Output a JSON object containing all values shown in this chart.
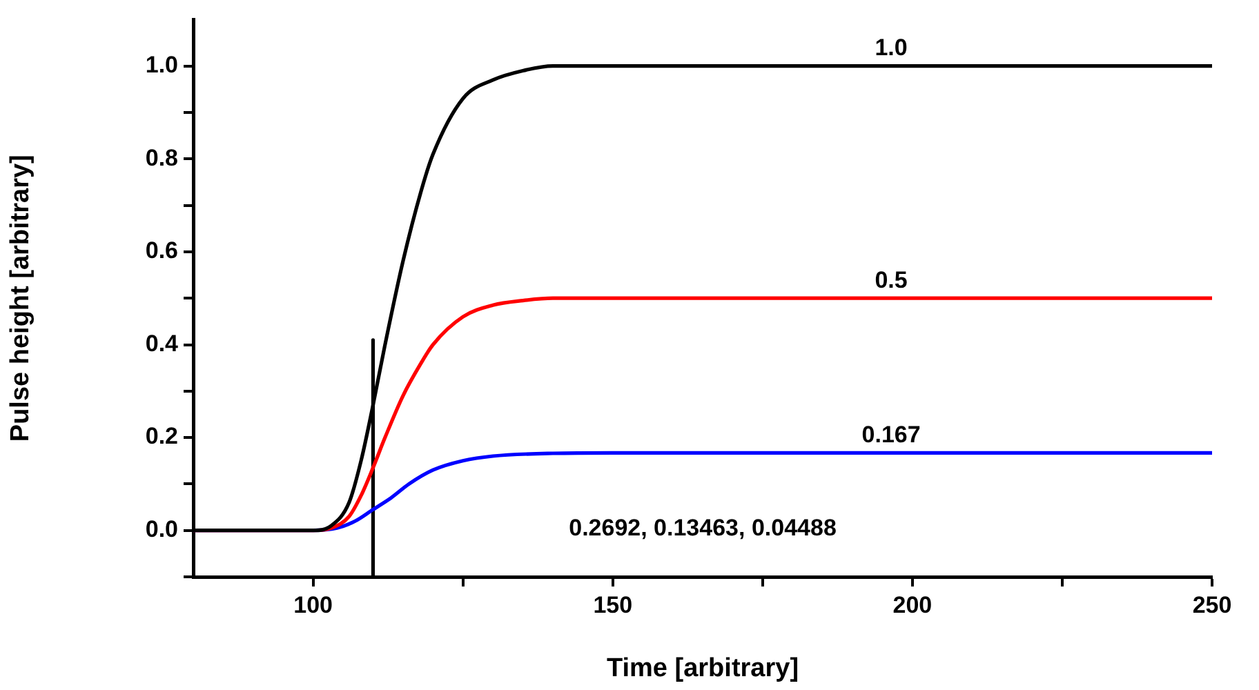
{
  "chart_data": {
    "type": "line",
    "xlabel": "Time [arbitrary]",
    "ylabel": "Pulse height [arbitrary]",
    "xlim": [
      80,
      250
    ],
    "ylim": [
      -0.1,
      1.1
    ],
    "xticks": [
      100,
      {
        "value": 125,
        "label": null
      },
      150,
      {
        "value": 175,
        "label": null
      },
      200,
      {
        "value": 225,
        "label": null
      },
      250
    ],
    "yticks": [
      {
        "value": -0.1,
        "label": null
      },
      {
        "value": 0,
        "label": "0.0"
      },
      {
        "value": 0.1,
        "label": null
      },
      0.2,
      {
        "value": 0.3,
        "label": null
      },
      0.4,
      {
        "value": 0.5,
        "label": null
      },
      0.6,
      {
        "value": 0.7,
        "label": null
      },
      0.8,
      {
        "value": 0.9,
        "label": null
      },
      {
        "value": 1,
        "label": "1.0"
      }
    ],
    "grid": false,
    "legend": false,
    "marker": "none",
    "line_style": "solid",
    "series": [
      {
        "name": "1.0",
        "color": "#000000",
        "x": [
          80,
          100,
          103,
          106,
          108,
          110,
          112,
          115,
          118,
          120,
          125,
          130,
          135,
          140,
          150,
          250
        ],
        "values": [
          0,
          0,
          0.01,
          0.06,
          0.15,
          0.27,
          0.4,
          0.58,
          0.73,
          0.81,
          0.93,
          0.97,
          0.99,
          1,
          1,
          1
        ]
      },
      {
        "name": "0.5",
        "color": "#ff0000",
        "x": [
          80,
          100,
          103,
          106,
          108,
          110,
          112,
          115,
          118,
          120,
          125,
          130,
          135,
          140,
          250
        ],
        "values": [
          0,
          0,
          0.005,
          0.03,
          0.075,
          0.135,
          0.2,
          0.29,
          0.36,
          0.4,
          0.46,
          0.485,
          0.495,
          0.5,
          0.5
        ]
      },
      {
        "name": "0.167",
        "color": "#0000ff",
        "x": [
          80,
          100,
          104,
          107,
          110,
          113,
          116,
          120,
          125,
          130,
          140,
          150,
          250
        ],
        "values": [
          0,
          0,
          0.005,
          0.02,
          0.045,
          0.07,
          0.1,
          0.13,
          0.15,
          0.16,
          0.166,
          0.167,
          0.167
        ]
      },
      {
        "color": "#000000",
        "x": [
          110,
          110
        ],
        "values": [
          -0.1,
          0.41
        ]
      }
    ],
    "annotations": [
      "0.2692, 0.13463, 0.04488"
    ]
  }
}
